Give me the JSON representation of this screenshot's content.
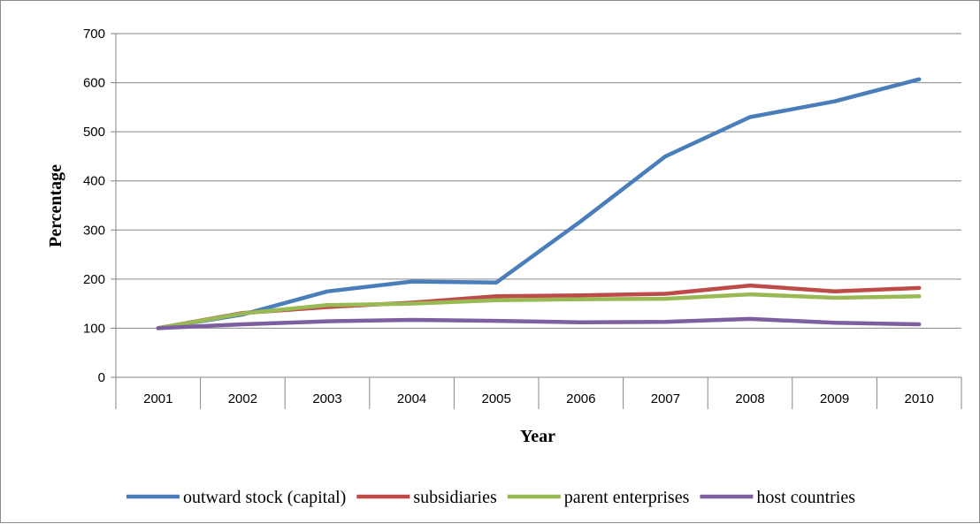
{
  "chart_data": {
    "type": "line",
    "xlabel": "Year",
    "ylabel": "Percentage",
    "ylim": [
      0,
      700
    ],
    "yticks": [
      0,
      100,
      200,
      300,
      400,
      500,
      600,
      700
    ],
    "grid": true,
    "legend_position": "bottom",
    "categories": [
      "2001",
      "2002",
      "2003",
      "2004",
      "2005",
      "2006",
      "2007",
      "2008",
      "2009",
      "2010"
    ],
    "series": [
      {
        "name": "outward stock (capital)",
        "color": "#4a7ebb",
        "values": [
          100,
          128,
          175,
          195,
          193,
          318,
          450,
          530,
          562,
          607
        ]
      },
      {
        "name": "subsidiaries",
        "color": "#be4b48",
        "values": [
          100,
          131,
          143,
          152,
          165,
          167,
          170,
          187,
          175,
          182
        ]
      },
      {
        "name": "parent enterprises",
        "color": "#98b954",
        "values": [
          100,
          130,
          147,
          150,
          157,
          159,
          160,
          169,
          162,
          165
        ]
      },
      {
        "name": "host countries",
        "color": "#7d5fa0",
        "values": [
          100,
          108,
          114,
          117,
          115,
          112,
          113,
          119,
          111,
          108
        ]
      }
    ]
  }
}
